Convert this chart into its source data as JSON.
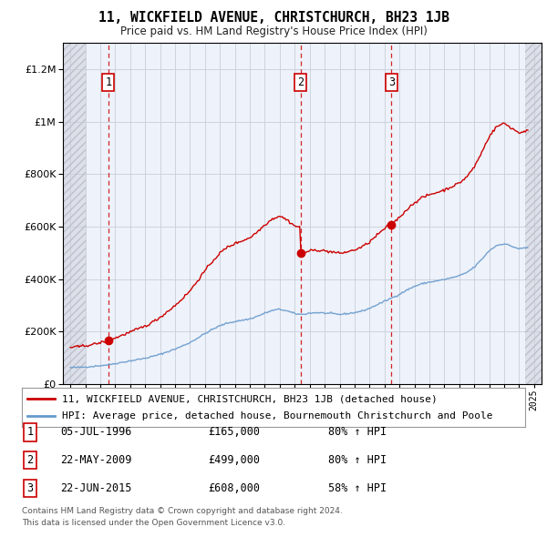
{
  "title": "11, WICKFIELD AVENUE, CHRISTCHURCH, BH23 1JB",
  "subtitle": "Price paid vs. HM Land Registry's House Price Index (HPI)",
  "hpi_label": "HPI: Average price, detached house, Bournemouth Christchurch and Poole",
  "property_label": "11, WICKFIELD AVENUE, CHRISTCHURCH, BH23 1JB (detached house)",
  "footer1": "Contains HM Land Registry data © Crown copyright and database right 2024.",
  "footer2": "This data is licensed under the Open Government Licence v3.0.",
  "transactions": [
    {
      "num": 1,
      "date": "05-JUL-1996",
      "price": 165000,
      "hpi_pct": "80% ↑ HPI",
      "year_f": 1996.54
    },
    {
      "num": 2,
      "date": "22-MAY-2009",
      "price": 499000,
      "hpi_pct": "80% ↑ HPI",
      "year_f": 2009.39
    },
    {
      "num": 3,
      "date": "22-JUN-2015",
      "price": 608000,
      "hpi_pct": "58% ↑ HPI",
      "year_f": 2015.47
    }
  ],
  "hpi_color": "#6699cc",
  "price_color": "#cc0000",
  "vline_color": "#cc0000",
  "ylim": [
    0,
    1300000
  ],
  "xlim_start": 1993.5,
  "xlim_end": 2025.5,
  "hatch_end": 1995.0,
  "hatch_start_right": 2024.5
}
